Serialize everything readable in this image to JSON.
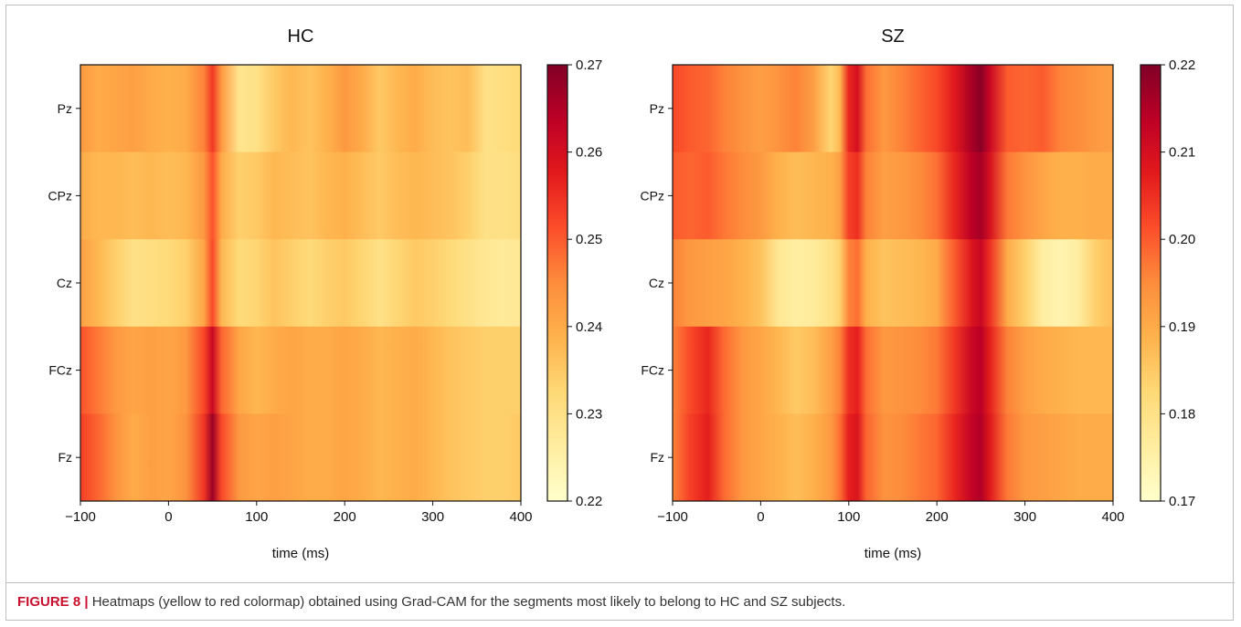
{
  "colors": {
    "colormap": [
      "#ffffcc",
      "#ffeda0",
      "#fed976",
      "#feb24c",
      "#fd8d3c",
      "#fc4e2a",
      "#e31a1c",
      "#bd0026",
      "#800026"
    ],
    "caption_label": "#c8102e"
  },
  "chart_data": [
    {
      "type": "heatmap",
      "title": "HC",
      "xlabel": "time (ms)",
      "ylabel": "",
      "xlim": [
        -100,
        400
      ],
      "xticks": [
        -100,
        0,
        100,
        200,
        300,
        400
      ],
      "xtick_labels": [
        "−100",
        "0",
        "100",
        "200",
        "300",
        "400"
      ],
      "rows": [
        "Pz",
        "CPz",
        "Cz",
        "FCz",
        "Fz"
      ],
      "colorbar": {
        "min": 0.22,
        "max": 0.27,
        "ticks": [
          0.27,
          0.26,
          0.25,
          0.24,
          0.23,
          0.22
        ],
        "tick_labels": [
          "0.27",
          "0.26",
          "0.25",
          "0.24",
          "0.23",
          "0.22"
        ]
      },
      "time": [
        -100,
        -80,
        -60,
        -40,
        -20,
        0,
        20,
        40,
        50,
        60,
        80,
        100,
        120,
        140,
        160,
        180,
        200,
        220,
        240,
        260,
        280,
        300,
        320,
        340,
        360,
        380,
        400
      ],
      "values": [
        [
          0.243,
          0.24,
          0.241,
          0.242,
          0.24,
          0.239,
          0.24,
          0.246,
          0.254,
          0.243,
          0.229,
          0.23,
          0.235,
          0.238,
          0.236,
          0.239,
          0.243,
          0.24,
          0.235,
          0.238,
          0.24,
          0.237,
          0.236,
          0.237,
          0.23,
          0.231,
          0.232
        ],
        [
          0.24,
          0.238,
          0.238,
          0.237,
          0.238,
          0.237,
          0.238,
          0.243,
          0.251,
          0.24,
          0.234,
          0.235,
          0.238,
          0.237,
          0.236,
          0.238,
          0.239,
          0.237,
          0.235,
          0.237,
          0.238,
          0.237,
          0.236,
          0.234,
          0.23,
          0.23,
          0.231
        ],
        [
          0.242,
          0.238,
          0.234,
          0.23,
          0.231,
          0.232,
          0.234,
          0.241,
          0.252,
          0.238,
          0.232,
          0.233,
          0.236,
          0.234,
          0.232,
          0.234,
          0.235,
          0.233,
          0.23,
          0.233,
          0.235,
          0.234,
          0.232,
          0.23,
          0.228,
          0.227,
          0.228
        ],
        [
          0.251,
          0.247,
          0.243,
          0.241,
          0.242,
          0.241,
          0.243,
          0.252,
          0.262,
          0.249,
          0.241,
          0.238,
          0.24,
          0.241,
          0.24,
          0.24,
          0.241,
          0.24,
          0.238,
          0.239,
          0.24,
          0.238,
          0.236,
          0.235,
          0.234,
          0.234,
          0.234
        ],
        [
          0.253,
          0.249,
          0.244,
          0.24,
          0.242,
          0.241,
          0.244,
          0.254,
          0.267,
          0.252,
          0.243,
          0.241,
          0.242,
          0.241,
          0.24,
          0.24,
          0.241,
          0.24,
          0.238,
          0.239,
          0.24,
          0.238,
          0.236,
          0.235,
          0.234,
          0.234,
          0.235
        ]
      ]
    },
    {
      "type": "heatmap",
      "title": "SZ",
      "xlabel": "time (ms)",
      "ylabel": "",
      "xlim": [
        -100,
        400
      ],
      "xticks": [
        -100,
        0,
        100,
        200,
        300,
        400
      ],
      "xtick_labels": [
        "−100",
        "0",
        "100",
        "200",
        "300",
        "400"
      ],
      "rows": [
        "Pz",
        "CPz",
        "Cz",
        "FCz",
        "Fz"
      ],
      "colorbar": {
        "min": 0.17,
        "max": 0.22,
        "ticks": [
          0.22,
          0.21,
          0.2,
          0.19,
          0.18,
          0.17
        ],
        "tick_labels": [
          "0.22",
          "0.21",
          "0.20",
          "0.19",
          "0.18",
          "0.17"
        ]
      },
      "time": [
        -100,
        -80,
        -60,
        -40,
        -20,
        0,
        20,
        40,
        60,
        80,
        90,
        100,
        110,
        120,
        140,
        160,
        180,
        200,
        220,
        240,
        250,
        260,
        280,
        300,
        320,
        340,
        360,
        380,
        400
      ],
      "values": [
        [
          0.202,
          0.2,
          0.199,
          0.196,
          0.194,
          0.192,
          0.194,
          0.196,
          0.192,
          0.183,
          0.188,
          0.206,
          0.21,
          0.198,
          0.193,
          0.196,
          0.199,
          0.202,
          0.208,
          0.216,
          0.219,
          0.212,
          0.2,
          0.199,
          0.2,
          0.196,
          0.195,
          0.193,
          0.192
        ],
        [
          0.2,
          0.199,
          0.2,
          0.197,
          0.195,
          0.193,
          0.189,
          0.187,
          0.188,
          0.189,
          0.192,
          0.203,
          0.205,
          0.196,
          0.192,
          0.193,
          0.195,
          0.198,
          0.206,
          0.214,
          0.216,
          0.21,
          0.197,
          0.194,
          0.191,
          0.189,
          0.189,
          0.19,
          0.19
        ],
        [
          0.196,
          0.193,
          0.192,
          0.191,
          0.189,
          0.186,
          0.178,
          0.176,
          0.177,
          0.18,
          0.184,
          0.196,
          0.198,
          0.189,
          0.186,
          0.187,
          0.188,
          0.19,
          0.2,
          0.209,
          0.212,
          0.205,
          0.19,
          0.184,
          0.176,
          0.174,
          0.176,
          0.184,
          0.187
        ],
        [
          0.196,
          0.202,
          0.206,
          0.198,
          0.193,
          0.191,
          0.188,
          0.185,
          0.187,
          0.192,
          0.196,
          0.205,
          0.207,
          0.198,
          0.193,
          0.194,
          0.195,
          0.197,
          0.204,
          0.212,
          0.214,
          0.207,
          0.196,
          0.192,
          0.19,
          0.189,
          0.188,
          0.188,
          0.188
        ],
        [
          0.196,
          0.203,
          0.207,
          0.198,
          0.193,
          0.191,
          0.189,
          0.187,
          0.189,
          0.193,
          0.198,
          0.207,
          0.209,
          0.199,
          0.194,
          0.195,
          0.197,
          0.199,
          0.206,
          0.213,
          0.215,
          0.208,
          0.197,
          0.193,
          0.192,
          0.191,
          0.19,
          0.19,
          0.19
        ]
      ]
    }
  ],
  "caption": {
    "label": "FIGURE 8 |",
    "text": " Heatmaps (yellow to red colormap) obtained using Grad-CAM for the segments most likely to belong to HC and SZ subjects."
  }
}
